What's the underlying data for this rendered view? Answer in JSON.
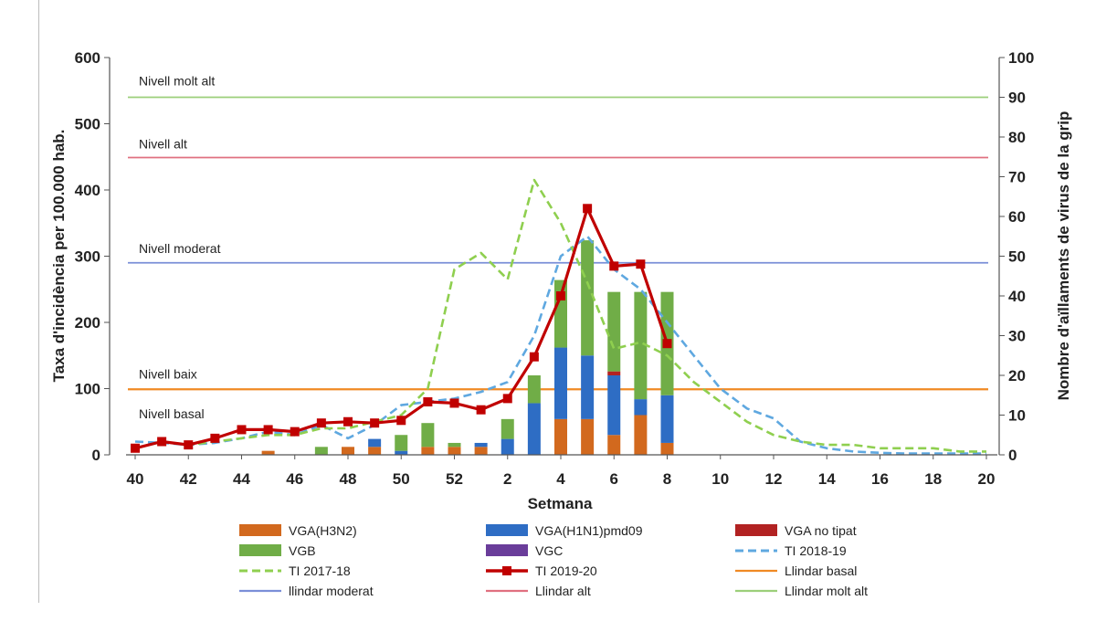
{
  "chart_data": {
    "type": "bar+line",
    "title": "",
    "xlabel": "Setmana",
    "ylabel_left": "Taxa d'incidència per 100.000 hab.",
    "ylabel_right": "Nombre d'aïllaments de virus de la grip",
    "ylim_left": [
      0,
      600
    ],
    "ylim_right": [
      0,
      100
    ],
    "yticks_left": [
      "0",
      "100",
      "200",
      "300",
      "400",
      "500",
      "600"
    ],
    "yticks_right": [
      "0",
      "10",
      "20",
      "30",
      "40",
      "50",
      "60",
      "70",
      "80",
      "90",
      "100"
    ],
    "categories": [
      "40",
      "41",
      "42",
      "43",
      "44",
      "45",
      "46",
      "47",
      "48",
      "49",
      "50",
      "51",
      "52",
      "1",
      "2",
      "3",
      "4",
      "5",
      "6",
      "7",
      "8",
      "9",
      "10",
      "11",
      "12",
      "13",
      "14",
      "15",
      "16",
      "17",
      "18",
      "19",
      "20"
    ],
    "xtick_labels": [
      "40",
      "42",
      "44",
      "46",
      "48",
      "50",
      "52",
      "2",
      "4",
      "6",
      "8",
      "10",
      "12",
      "14",
      "16",
      "18",
      "20"
    ],
    "bar_series": [
      {
        "name": "VGA(H3N2)",
        "color": "#d2691e",
        "values": [
          0,
          0,
          0,
          0,
          0,
          1,
          0,
          0,
          2,
          2,
          0,
          2,
          2,
          2,
          0,
          0,
          9,
          9,
          5,
          10,
          3,
          0,
          0,
          0,
          0,
          0,
          0,
          0,
          0,
          0,
          0,
          0,
          0
        ]
      },
      {
        "name": "VGA(H1N1)pmd09",
        "color": "#2e6dc4",
        "values": [
          0,
          0,
          0,
          0,
          0,
          0,
          0,
          0,
          0,
          2,
          1,
          0,
          0,
          1,
          4,
          13,
          18,
          16,
          15,
          4,
          12,
          0,
          0,
          0,
          0,
          0,
          0,
          0,
          0,
          0,
          0,
          0,
          0
        ]
      },
      {
        "name": "VGA no tipat",
        "color": "#b22222",
        "values": [
          0,
          0,
          0,
          0,
          0,
          0,
          0,
          0,
          0,
          0,
          0,
          0,
          0,
          0,
          0,
          0,
          0,
          0,
          1,
          0,
          0,
          0,
          0,
          0,
          0,
          0,
          0,
          0,
          0,
          0,
          0,
          0,
          0
        ]
      },
      {
        "name": "VGB",
        "color": "#70ad47",
        "values": [
          0,
          0,
          0,
          0,
          0,
          0,
          0,
          2,
          0,
          0,
          4,
          6,
          1,
          0,
          5,
          7,
          17,
          29,
          20,
          27,
          26,
          0,
          0,
          0,
          0,
          0,
          0,
          0,
          0,
          0,
          0,
          0,
          0
        ]
      },
      {
        "name": "VGC",
        "color": "#6a3d9a",
        "values": [
          0,
          0,
          0,
          0,
          0,
          0,
          0,
          0,
          0,
          0,
          0,
          0,
          0,
          0,
          0,
          0,
          0,
          0,
          0,
          0,
          0,
          0,
          0,
          0,
          0,
          0,
          0,
          0,
          0,
          0,
          0,
          0,
          0
        ]
      }
    ],
    "line_series": [
      {
        "name": "TI 2018-19",
        "color": "#5fa8e0",
        "style": "dashed",
        "values": [
          20,
          18,
          15,
          18,
          25,
          35,
          30,
          45,
          25,
          45,
          75,
          80,
          85,
          95,
          110,
          180,
          300,
          330,
          280,
          250,
          200,
          150,
          100,
          70,
          55,
          20,
          10,
          5,
          3,
          2,
          2,
          2,
          2
        ]
      },
      {
        "name": "TI 2017-18",
        "color": "#8fcf4f",
        "style": "dashed",
        "values": [
          10,
          20,
          15,
          20,
          25,
          30,
          30,
          40,
          40,
          50,
          60,
          100,
          280,
          305,
          265,
          415,
          350,
          260,
          160,
          170,
          150,
          110,
          80,
          50,
          30,
          20,
          15,
          15,
          10,
          10,
          10,
          5,
          5
        ]
      },
      {
        "name": "TI 2019-20",
        "color": "#c00000",
        "style": "solid-markers",
        "values": [
          10,
          20,
          15,
          25,
          38,
          38,
          35,
          48,
          50,
          48,
          52,
          80,
          78,
          68,
          85,
          148,
          240,
          372,
          285,
          288,
          168,
          null,
          null,
          null,
          null,
          null,
          null,
          null,
          null,
          null,
          null,
          null,
          null
        ]
      }
    ],
    "threshold_lines": [
      {
        "name": "Llindar basal",
        "value": 99,
        "color": "#f08a24"
      },
      {
        "name": "llindar moderat",
        "value": 290,
        "color": "#7b8fd8"
      },
      {
        "name": "Llindar alt",
        "value": 449,
        "color": "#e07080"
      },
      {
        "name": "Llindar molt alt",
        "value": 540,
        "color": "#9ccf7a"
      }
    ],
    "threshold_labels": [
      {
        "text": "Nivell basal",
        "value": 62
      },
      {
        "text": "Nivell baix",
        "value": 122
      },
      {
        "text": "Nivell moderat",
        "value": 312
      },
      {
        "text": "Nivell alt",
        "value": 470
      },
      {
        "text": "Nivell molt alt",
        "value": 565
      }
    ],
    "legend": [
      {
        "label": "VGA(H3N2)",
        "kind": "bar",
        "color": "#d2691e"
      },
      {
        "label": "VGA(H1N1)pmd09",
        "kind": "bar",
        "color": "#2e6dc4"
      },
      {
        "label": "VGA no tipat",
        "kind": "bar",
        "color": "#b22222"
      },
      {
        "label": "VGB",
        "kind": "bar",
        "color": "#70ad47"
      },
      {
        "label": "VGC",
        "kind": "bar",
        "color": "#6a3d9a"
      },
      {
        "label": "TI 2018-19",
        "kind": "dash",
        "color": "#5fa8e0"
      },
      {
        "label": "TI 2017-18",
        "kind": "dash",
        "color": "#8fcf4f"
      },
      {
        "label": "TI 2019-20",
        "kind": "marker-line",
        "color": "#c00000"
      },
      {
        "label": "Llindar basal",
        "kind": "line",
        "color": "#f08a24"
      },
      {
        "label": "llindar moderat",
        "kind": "line",
        "color": "#7b8fd8"
      },
      {
        "label": "Llindar alt",
        "kind": "line",
        "color": "#e07080"
      },
      {
        "label": "Llindar molt alt",
        "kind": "line",
        "color": "#9ccf7a"
      }
    ]
  }
}
